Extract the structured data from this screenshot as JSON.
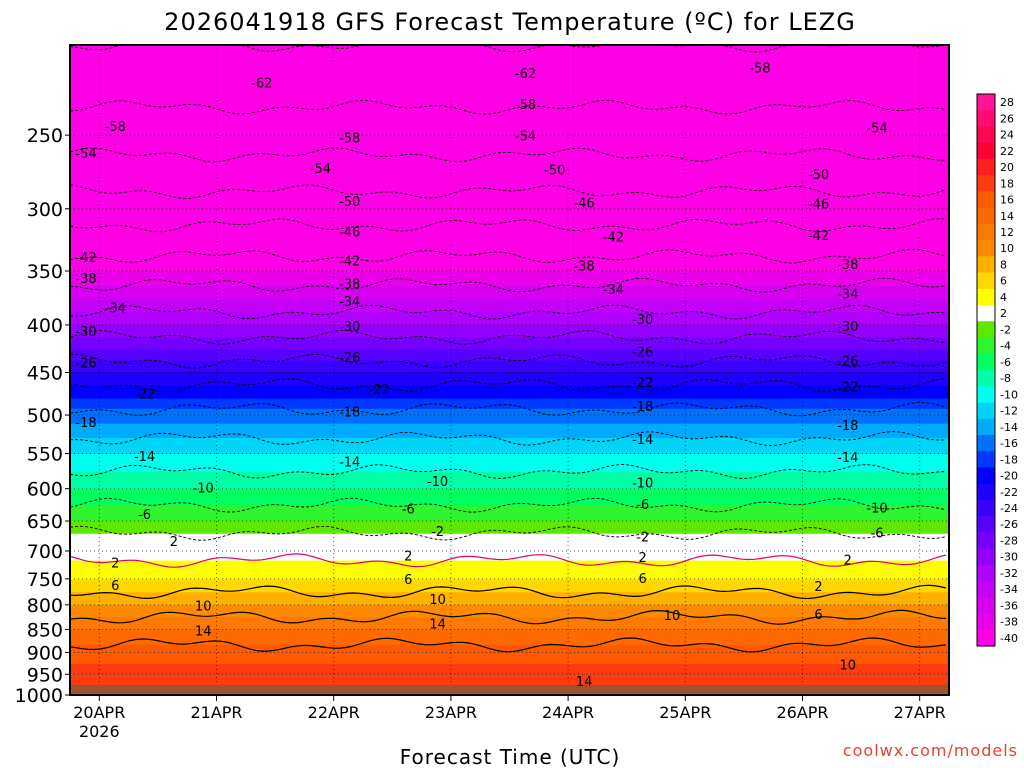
{
  "chart_data": {
    "type": "heatmap",
    "title": "2026041918 GFS Forecast Temperature (ºC) for LEZG",
    "xlabel": "Forecast Time (UTC)",
    "ylabel": "",
    "credit": "coolwx.com/models",
    "y_axis": {
      "ticks": [
        250,
        300,
        350,
        400,
        450,
        500,
        550,
        600,
        650,
        700,
        750,
        800,
        850,
        900,
        950,
        1000
      ],
      "range": [
        200,
        1000
      ],
      "scale": "log",
      "inverted": true,
      "ground_level": 975
    },
    "x_axis": {
      "ticks": [
        {
          "label": "20APR",
          "sub": "2026"
        },
        {
          "label": "21APR",
          "sub": ""
        },
        {
          "label": "22APR",
          "sub": ""
        },
        {
          "label": "23APR",
          "sub": ""
        },
        {
          "label": "24APR",
          "sub": ""
        },
        {
          "label": "25APR",
          "sub": ""
        },
        {
          "label": "26APR",
          "sub": ""
        },
        {
          "label": "27APR",
          "sub": ""
        }
      ],
      "start": "2026-04-19T18:00Z",
      "end": "2026-04-27T06:00Z"
    },
    "grid": true,
    "colorbar": {
      "position": "right",
      "labels": [
        "28",
        "26",
        "24",
        "22",
        "20",
        "18",
        "16",
        "14",
        "12",
        "10",
        "8",
        "6",
        "4",
        "2",
        "-2",
        "-4",
        "-6",
        "-8",
        "-10",
        "-12",
        "-14",
        "-16",
        "-18",
        "-20",
        "-22",
        "-24",
        "-26",
        "-28",
        "-30",
        "-32",
        "-34",
        "-36",
        "-38",
        "-40"
      ]
    },
    "temperature_profile": {
      "pressure": [
        200,
        250,
        300,
        350,
        400,
        450,
        500,
        550,
        600,
        650,
        700,
        750,
        800,
        850,
        900,
        950,
        975
      ],
      "temp": [
        -62,
        -56,
        -48,
        -40,
        -32,
        -24,
        -17,
        -12,
        -8,
        -4,
        1,
        4,
        8,
        12,
        15,
        17,
        18
      ]
    },
    "contour_labels": [
      {
        "text": "-62",
        "day": "2026-04-21T06:00Z",
        "p": 220
      },
      {
        "text": "-62",
        "day": "2026-04-23T12:00Z",
        "p": 215
      },
      {
        "text": "-58",
        "day": "2026-04-25T12:00Z",
        "p": 212
      },
      {
        "text": "-58",
        "day": "2026-04-20T00:00Z",
        "p": 245
      },
      {
        "text": "-58",
        "day": "2026-04-22T00:00Z",
        "p": 252
      },
      {
        "text": "-58",
        "day": "2026-04-23T12:00Z",
        "p": 232
      },
      {
        "text": "-54",
        "day": "2026-04-19T18:00Z",
        "p": 262
      },
      {
        "text": "-54",
        "day": "2026-04-21T18:00Z",
        "p": 272
      },
      {
        "text": "-54",
        "day": "2026-04-23T12:00Z",
        "p": 251
      },
      {
        "text": "-54",
        "day": "2026-04-26T12:00Z",
        "p": 246
      },
      {
        "text": "-50",
        "day": "2026-04-22T00:00Z",
        "p": 295
      },
      {
        "text": "-50",
        "day": "2026-04-23T18:00Z",
        "p": 273
      },
      {
        "text": "-50",
        "day": "2026-04-26T00:00Z",
        "p": 276
      },
      {
        "text": "-46",
        "day": "2026-04-22T00:00Z",
        "p": 318
      },
      {
        "text": "-46",
        "day": "2026-04-24T00:00Z",
        "p": 296
      },
      {
        "text": "-46",
        "day": "2026-04-26T00:00Z",
        "p": 297
      },
      {
        "text": "-42",
        "day": "2026-04-19T18:00Z",
        "p": 339
      },
      {
        "text": "-42",
        "day": "2026-04-22T00:00Z",
        "p": 342
      },
      {
        "text": "-42",
        "day": "2026-04-24T06:00Z",
        "p": 322
      },
      {
        "text": "-42",
        "day": "2026-04-26T00:00Z",
        "p": 321
      },
      {
        "text": "-38",
        "day": "2026-04-19T18:00Z",
        "p": 357
      },
      {
        "text": "-38",
        "day": "2026-04-22T00:00Z",
        "p": 362
      },
      {
        "text": "-38",
        "day": "2026-04-24T00:00Z",
        "p": 346
      },
      {
        "text": "-38",
        "day": "2026-04-26T06:00Z",
        "p": 345
      },
      {
        "text": "-34",
        "day": "2026-04-20T00:00Z",
        "p": 384
      },
      {
        "text": "-34",
        "day": "2026-04-22T00:00Z",
        "p": 378
      },
      {
        "text": "-34",
        "day": "2026-04-24T06:00Z",
        "p": 367
      },
      {
        "text": "-34",
        "day": "2026-04-26T06:00Z",
        "p": 371
      },
      {
        "text": "-30",
        "day": "2026-04-19T18:00Z",
        "p": 407
      },
      {
        "text": "-30",
        "day": "2026-04-22T00:00Z",
        "p": 402
      },
      {
        "text": "-30",
        "day": "2026-04-24T12:00Z",
        "p": 395
      },
      {
        "text": "-30",
        "day": "2026-04-26T06:00Z",
        "p": 402
      },
      {
        "text": "-26",
        "day": "2026-04-19T18:00Z",
        "p": 440
      },
      {
        "text": "-26",
        "day": "2026-04-22T00:00Z",
        "p": 434
      },
      {
        "text": "-26",
        "day": "2026-04-24T12:00Z",
        "p": 428
      },
      {
        "text": "-26",
        "day": "2026-04-26T06:00Z",
        "p": 438
      },
      {
        "text": "-22",
        "day": "2026-04-20T06:00Z",
        "p": 475
      },
      {
        "text": "-22",
        "day": "2026-04-22T06:00Z",
        "p": 470
      },
      {
        "text": "-22",
        "day": "2026-04-24T12:00Z",
        "p": 462
      },
      {
        "text": "-22",
        "day": "2026-04-26T06:00Z",
        "p": 467
      },
      {
        "text": "-18",
        "day": "2026-04-19T18:00Z",
        "p": 510
      },
      {
        "text": "-18",
        "day": "2026-04-22T00:00Z",
        "p": 497
      },
      {
        "text": "-18",
        "day": "2026-04-24T12:00Z",
        "p": 490
      },
      {
        "text": "-18",
        "day": "2026-04-26T06:00Z",
        "p": 514
      },
      {
        "text": "-14",
        "day": "2026-04-20T06:00Z",
        "p": 555
      },
      {
        "text": "-14",
        "day": "2026-04-22T00:00Z",
        "p": 562
      },
      {
        "text": "-14",
        "day": "2026-04-24T12:00Z",
        "p": 532
      },
      {
        "text": "-14",
        "day": "2026-04-26T06:00Z",
        "p": 556
      },
      {
        "text": "-10",
        "day": "2026-04-20T18:00Z",
        "p": 600
      },
      {
        "text": "-10",
        "day": "2026-04-22T18:00Z",
        "p": 590
      },
      {
        "text": "-10",
        "day": "2026-04-24T12:00Z",
        "p": 592
      },
      {
        "text": "-10",
        "day": "2026-04-26T12:00Z",
        "p": 630
      },
      {
        "text": "-6",
        "day": "2026-04-20T06:00Z",
        "p": 640
      },
      {
        "text": "-6",
        "day": "2026-04-22T12:00Z",
        "p": 632
      },
      {
        "text": "-6",
        "day": "2026-04-24T12:00Z",
        "p": 625
      },
      {
        "text": "-6",
        "day": "2026-04-26T12:00Z",
        "p": 670
      },
      {
        "text": "-2",
        "day": "2026-04-22T18:00Z",
        "p": 668
      },
      {
        "text": "-2",
        "day": "2026-04-24T12:00Z",
        "p": 677
      },
      {
        "text": "2",
        "day": "2026-04-20T12:00Z",
        "p": 685
      },
      {
        "text": "2",
        "day": "2026-04-20T00:00Z",
        "p": 722
      },
      {
        "text": "2",
        "day": "2026-04-22T12:00Z",
        "p": 710
      },
      {
        "text": "2",
        "day": "2026-04-24T12:00Z",
        "p": 712
      },
      {
        "text": "2",
        "day": "2026-04-26T06:00Z",
        "p": 717
      },
      {
        "text": "2",
        "day": "2026-04-26T00:00Z",
        "p": 765
      },
      {
        "text": "6",
        "day": "2026-04-20T00:00Z",
        "p": 763
      },
      {
        "text": "6",
        "day": "2026-04-22T12:00Z",
        "p": 752
      },
      {
        "text": "6",
        "day": "2026-04-24T12:00Z",
        "p": 750
      },
      {
        "text": "6",
        "day": "2026-04-26T00:00Z",
        "p": 820
      },
      {
        "text": "10",
        "day": "2026-04-20T18:00Z",
        "p": 803
      },
      {
        "text": "10",
        "day": "2026-04-22T18:00Z",
        "p": 790
      },
      {
        "text": "10",
        "day": "2026-04-24T18:00Z",
        "p": 822
      },
      {
        "text": "10",
        "day": "2026-04-26T06:00Z",
        "p": 930
      },
      {
        "text": "14",
        "day": "2026-04-20T18:00Z",
        "p": 855
      },
      {
        "text": "14",
        "day": "2026-04-22T18:00Z",
        "p": 840
      },
      {
        "text": "14",
        "day": "2026-04-24T00:00Z",
        "p": 968
      }
    ]
  }
}
